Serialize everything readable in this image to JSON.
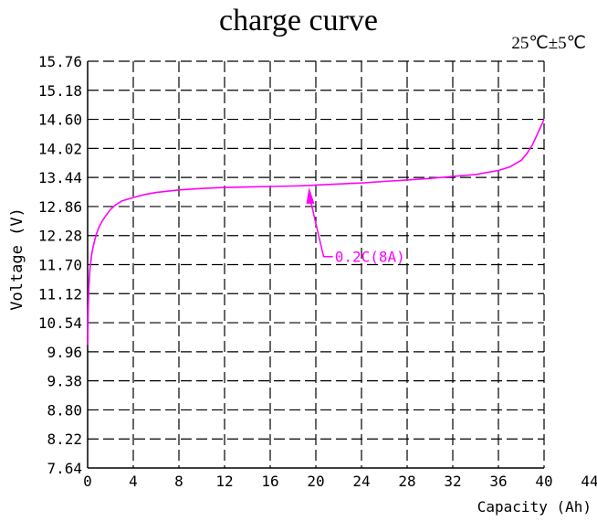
{
  "chart_data": {
    "type": "line",
    "title": "charge curve",
    "condition_note": "25℃±5℃",
    "xlabel": "Capacity (Ah)",
    "ylabel": "Voltage (V)",
    "x_ticks": [
      "0",
      "4",
      "8",
      "12",
      "16",
      "20",
      "24",
      "28",
      "32",
      "36",
      "40",
      "44"
    ],
    "y_ticks": [
      "7.64",
      "8.22",
      "8.80",
      "9.38",
      "9.96",
      "10.54",
      "11.12",
      "11.70",
      "12.28",
      "12.86",
      "13.44",
      "14.02",
      "14.60",
      "15.18",
      "15.76"
    ],
    "xlim": [
      0,
      44
    ],
    "ylim": [
      7.64,
      15.76
    ],
    "grid": true,
    "line_color": "#ff00ff",
    "series": [
      {
        "name": "0.2C(8A)",
        "x": [
          0,
          0.05,
          0.1,
          0.2,
          0.35,
          0.5,
          0.75,
          1.0,
          1.3,
          1.6,
          2.0,
          2.5,
          3.0,
          4.0,
          5.0,
          6.0,
          8.0,
          10.0,
          12.0,
          14.0,
          16.0,
          18.0,
          19.4,
          20.0,
          22.0,
          24.0,
          26.0,
          28.0,
          30.0,
          32.0,
          34.0,
          36.0,
          37.0,
          38.0,
          38.5,
          39.0,
          39.5,
          40.0
        ],
        "y": [
          10.1,
          10.8,
          11.25,
          11.6,
          11.9,
          12.08,
          12.3,
          12.45,
          12.58,
          12.68,
          12.8,
          12.9,
          12.97,
          13.04,
          13.1,
          13.14,
          13.19,
          13.22,
          13.24,
          13.25,
          13.26,
          13.27,
          13.28,
          13.29,
          13.31,
          13.33,
          13.36,
          13.39,
          13.42,
          13.46,
          13.5,
          13.58,
          13.65,
          13.78,
          13.92,
          14.1,
          14.35,
          14.6
        ]
      }
    ],
    "annotations": [
      {
        "text": "0.2C(8A)",
        "x": 19.4,
        "y": 13.28,
        "label_x": 21.5,
        "label_y": 11.86
      }
    ]
  }
}
